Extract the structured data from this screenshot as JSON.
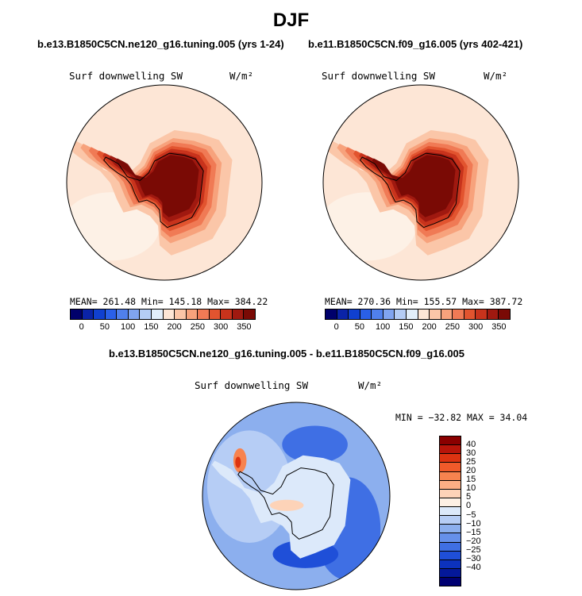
{
  "title": "DJF",
  "chart_data": [
    {
      "type": "heatmap",
      "projection": "south-polar-stereographic",
      "title": "b.e13.B1850C5CN.ne120_g16.tuning.005 (yrs 1-24)",
      "variable": "Surf downwelling SW",
      "units": "W/m²",
      "stats": {
        "mean": "261.48",
        "min": "145.18",
        "max": "384.22"
      },
      "stats_text": "MEAN= 261.48   Min= 145.18   Max= 384.22",
      "colorbar": {
        "colors": [
          "#00006b",
          "#0a23a8",
          "#1040d0",
          "#2a60e8",
          "#5080ec",
          "#80a4f0",
          "#b4ccf5",
          "#e2eefa",
          "#fde6d6",
          "#fbc6a8",
          "#f7a27c",
          "#f07a55",
          "#e2542f",
          "#c8331c",
          "#a01910",
          "#7a0a05"
        ],
        "ticks": [
          "0",
          "50",
          "100",
          "150",
          "200",
          "250",
          "300",
          "350"
        ]
      }
    },
    {
      "type": "heatmap",
      "projection": "south-polar-stereographic",
      "title": "b.e11.B1850C5CN.f09_g16.005 (yrs 402-421)",
      "variable": "Surf downwelling SW",
      "units": "W/m²",
      "stats": {
        "mean": "270.36",
        "min": "155.57",
        "max": "387.72"
      },
      "stats_text": "MEAN= 270.36   Min= 155.57   Max= 387.72",
      "colorbar": {
        "colors": [
          "#00006b",
          "#0a23a8",
          "#1040d0",
          "#2a60e8",
          "#5080ec",
          "#80a4f0",
          "#b4ccf5",
          "#e2eefa",
          "#fde6d6",
          "#fbc6a8",
          "#f7a27c",
          "#f07a55",
          "#e2542f",
          "#c8331c",
          "#a01910",
          "#7a0a05"
        ],
        "ticks": [
          "0",
          "50",
          "100",
          "150",
          "200",
          "250",
          "300",
          "350"
        ]
      }
    },
    {
      "type": "heatmap",
      "projection": "south-polar-stereographic",
      "title": "b.e13.B1850C5CN.ne120_g16.tuning.005 - b.e11.B1850C5CN.f09_g16.005",
      "variable": "Surf downwelling SW",
      "units": "W/m²",
      "stats": {
        "min": "-32.82",
        "max": "34.04"
      },
      "stats_text": "MIN = −32.82 MAX =  34.04",
      "colorbar": {
        "colors_top_to_bottom": [
          "#8a0000",
          "#b8150a",
          "#dd3311",
          "#f05a2a",
          "#f7834f",
          "#fbae84",
          "#fdd3b8",
          "#fdf0e4",
          "#dce9fa",
          "#b6cdf5",
          "#8cafee",
          "#6690ea",
          "#3f6fe4",
          "#1f4fd8",
          "#0c32bd",
          "#04189a",
          "#000072"
        ],
        "ticks": [
          "40",
          "30",
          "25",
          "20",
          "15",
          "10",
          "5",
          "0",
          "−5",
          "−10",
          "−15",
          "−20",
          "−25",
          "−30",
          "−40"
        ]
      }
    }
  ]
}
